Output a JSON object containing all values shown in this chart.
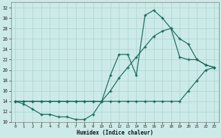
{
  "xlabel": "Humidex (Indice chaleur)",
  "background_color": "#cceae7",
  "grid_color": "#aad4d0",
  "line_color": "#1a6b60",
  "xlim": [
    -0.5,
    23.5
  ],
  "ylim": [
    10,
    33
  ],
  "xticks": [
    0,
    1,
    2,
    3,
    4,
    5,
    6,
    7,
    8,
    9,
    10,
    11,
    12,
    13,
    14,
    15,
    16,
    17,
    18,
    19,
    20,
    21,
    22,
    23
  ],
  "yticks": [
    10,
    12,
    14,
    16,
    18,
    20,
    22,
    24,
    26,
    28,
    30,
    32
  ],
  "series1_x": [
    0,
    1,
    2,
    3,
    4,
    5,
    6,
    7,
    8,
    9,
    10,
    11,
    12,
    13,
    14,
    15,
    16,
    17,
    18,
    19,
    20,
    21,
    22,
    23
  ],
  "series1_y": [
    14,
    13.5,
    12.5,
    11.5,
    11.5,
    11,
    11,
    10.5,
    10.5,
    11.5,
    14,
    19,
    23,
    23,
    19,
    30.5,
    31.5,
    30,
    28,
    22.5,
    22,
    22,
    21,
    20.5
  ],
  "series2_x": [
    0,
    1,
    2,
    3,
    4,
    5,
    6,
    7,
    8,
    9,
    10,
    11,
    12,
    13,
    14,
    15,
    16,
    17,
    18,
    19,
    20,
    21,
    22,
    23
  ],
  "series2_y": [
    14,
    14,
    14,
    14,
    14,
    14,
    14,
    14,
    14,
    14,
    14,
    16,
    18.5,
    20.5,
    22.5,
    24.5,
    26.5,
    27.5,
    28,
    26,
    25,
    22,
    21,
    20.5
  ],
  "series3_x": [
    0,
    1,
    2,
    3,
    4,
    5,
    6,
    7,
    8,
    9,
    10,
    11,
    12,
    13,
    14,
    15,
    16,
    17,
    18,
    19,
    20,
    21,
    22,
    23
  ],
  "series3_y": [
    14,
    14,
    14,
    14,
    14,
    14,
    14,
    14,
    14,
    14,
    14,
    14,
    14,
    14,
    14,
    14,
    14,
    14,
    14,
    14,
    16,
    18,
    20,
    20.5
  ]
}
